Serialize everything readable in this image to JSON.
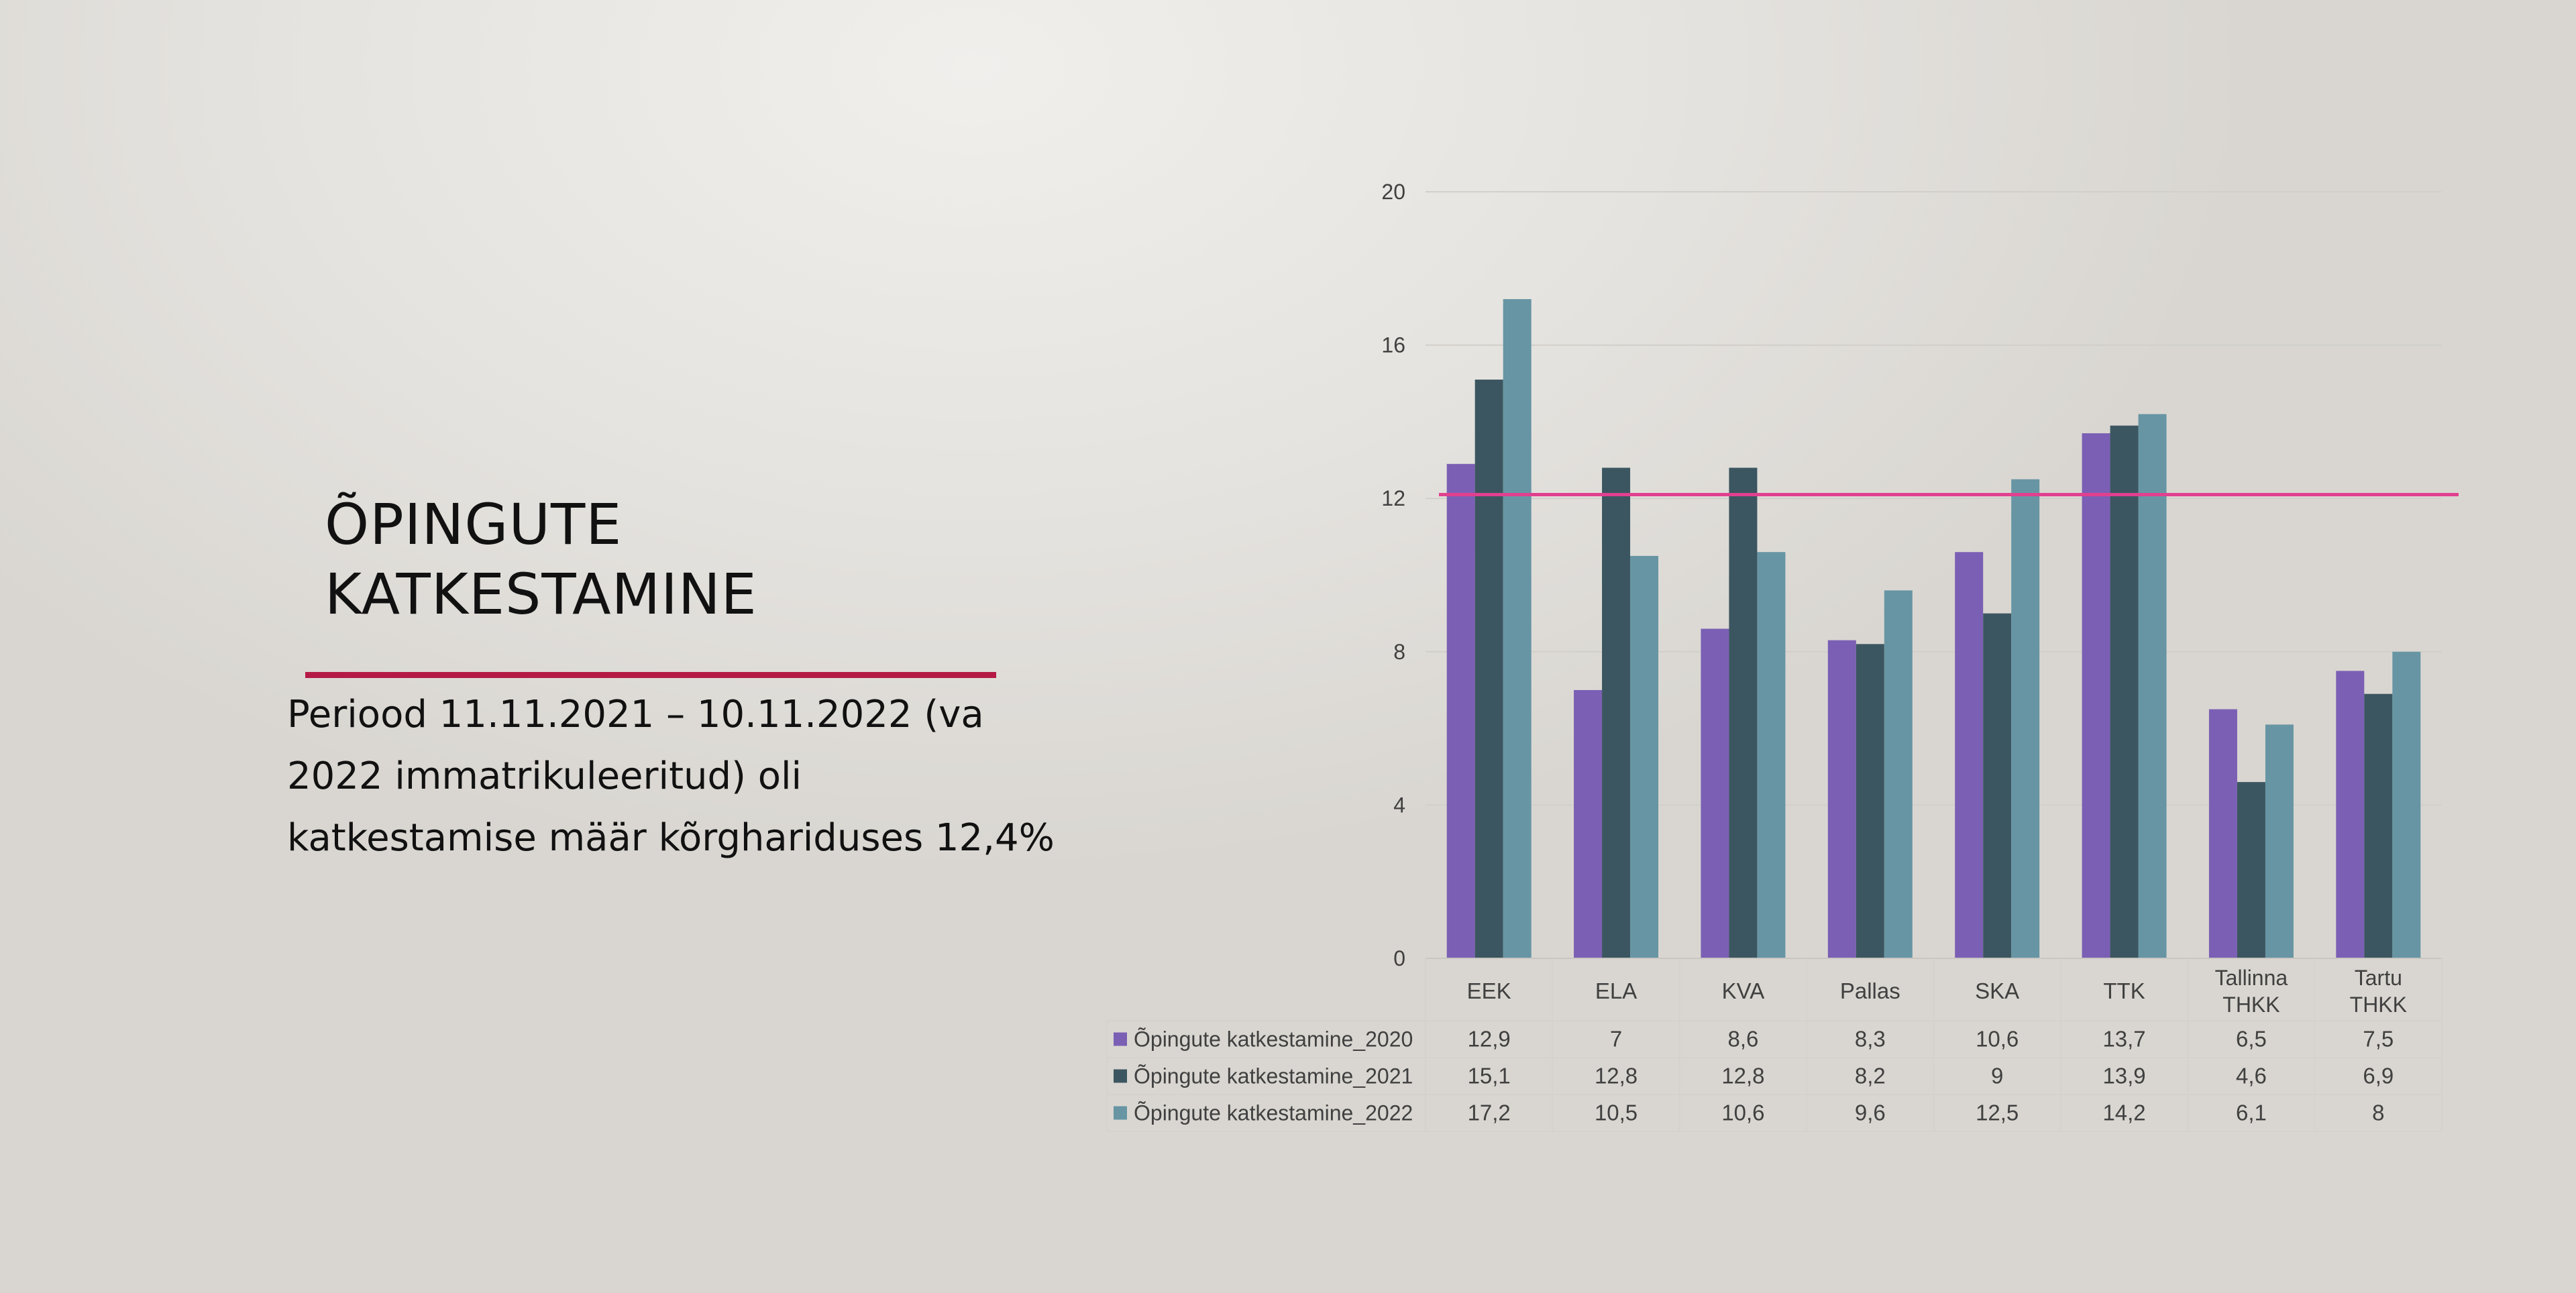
{
  "slide": {
    "title_line1": "ÕPINGUTE",
    "title_line2": "KATKESTAMINE",
    "accent_color": "#b41a45",
    "body": "Periood 11.11.2021 – 10.11.2022 (va 2022 immatrikuleeritud) oli katkestamise määr kõrghariduses 12,4%"
  },
  "chart_data": {
    "type": "bar",
    "categories": [
      "EEK",
      "ELA",
      "KVA",
      "Pallas",
      "SKA",
      "TTK",
      "Tallinna THKK",
      "Tartu THKK"
    ],
    "series": [
      {
        "name": "Õpingute katkestamine_2020",
        "color": "#7b5fb4",
        "values": [
          12.9,
          7,
          8.6,
          8.3,
          10.6,
          13.7,
          6.5,
          7.5
        ],
        "labels": [
          "12,9",
          "7",
          "8,6",
          "8,3",
          "10,6",
          "13,7",
          "6,5",
          "7,5"
        ]
      },
      {
        "name": "Õpingute katkestamine_2021",
        "color": "#3b5660",
        "values": [
          15.1,
          12.8,
          12.8,
          8.2,
          9,
          13.9,
          4.6,
          6.9
        ],
        "labels": [
          "15,1",
          "12,8",
          "12,8",
          "8,2",
          "9",
          "13,9",
          "4,6",
          "6,9"
        ]
      },
      {
        "name": "Õpingute katkestamine_2022",
        "color": "#6795a4",
        "values": [
          17.2,
          10.5,
          10.6,
          9.6,
          12.5,
          14.2,
          6.1,
          8
        ],
        "labels": [
          "17,2",
          "10,5",
          "10,6",
          "9,6",
          "12,5",
          "14,2",
          "6,1",
          "8"
        ]
      }
    ],
    "reference_line": {
      "value": 12.1,
      "color": "#e0408f"
    },
    "ylim": [
      0,
      20
    ],
    "yticks": [
      0,
      4,
      8,
      12,
      16,
      20
    ],
    "grid": true,
    "legend": "data-table"
  }
}
